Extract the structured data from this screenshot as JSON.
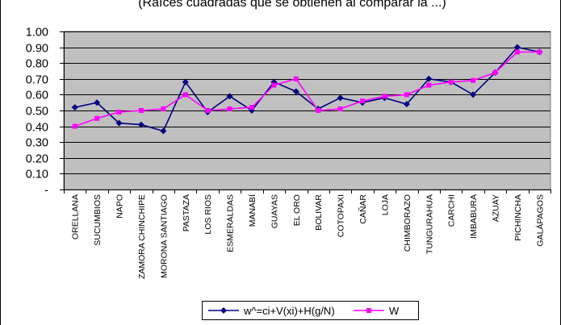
{
  "chart_data": {
    "type": "line",
    "title": "(Raíces cuadradas que se obtienen al comparar la ...)",
    "xlabel": "",
    "ylabel": "",
    "ylim": [
      0,
      1.0
    ],
    "y_ticks": [
      "-",
      "0.10",
      "0.20",
      "0.30",
      "0.40",
      "0.50",
      "0.60",
      "0.70",
      "0.80",
      "0.90",
      "1.00"
    ],
    "grid": true,
    "plot_background": "#c0c0c0",
    "legend_position": "bottom",
    "categories": [
      "ORELLANA",
      "SUCUMBIOS",
      "NAPO",
      "ZAMORA CHINCHIPE",
      "MORONA SANTIAGO",
      "PASTAZA",
      "LOS RIOS",
      "ESMERALDAS",
      "MANABÍ",
      "GUAYAS",
      "EL ORO",
      "BOLIVAR",
      "COTOPAXI",
      "CAÑAR",
      "LOJA",
      "CHIMBORAZO",
      "TUNGURAHUA",
      "CARCHI",
      "IMBABURA",
      "AZUAY",
      "PICHINCHA",
      "GALÁPAGOS"
    ],
    "series": [
      {
        "name": "w^=ci+V(xi)+H(g/N)",
        "color": "#000080",
        "marker": "diamond",
        "values": [
          0.52,
          0.55,
          0.42,
          0.41,
          0.37,
          0.68,
          0.49,
          0.59,
          0.5,
          0.68,
          0.62,
          0.51,
          0.58,
          0.55,
          0.58,
          0.54,
          0.7,
          0.68,
          0.6,
          0.74,
          0.9,
          0.87
        ]
      },
      {
        "name": "W",
        "color": "#ff00ff",
        "marker": "square",
        "values": [
          0.4,
          0.45,
          0.49,
          0.5,
          0.51,
          0.6,
          0.5,
          0.51,
          0.52,
          0.66,
          0.7,
          0.5,
          0.51,
          0.56,
          0.59,
          0.6,
          0.66,
          0.68,
          0.69,
          0.74,
          0.87,
          0.87
        ]
      }
    ]
  }
}
